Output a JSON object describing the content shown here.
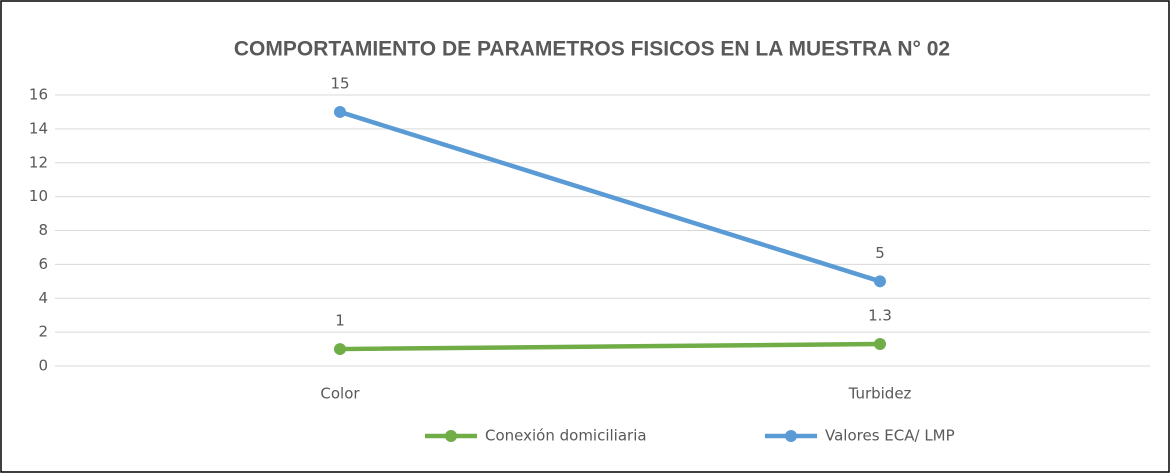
{
  "chart_data": {
    "type": "line",
    "title": "COMPORTAMIENTO DE PARAMETROS FISICOS EN LA MUESTRA N° 02",
    "categories": [
      "Color",
      "Turbidez"
    ],
    "series": [
      {
        "name": "Conexión domiciliaria",
        "color": "#70ad47",
        "values": [
          1,
          1.3
        ]
      },
      {
        "name": "Valores ECA/ LMP",
        "color": "#5b9bd5",
        "values": [
          15,
          5
        ]
      }
    ],
    "ylim": [
      0,
      16
    ],
    "yticks": [
      0,
      2,
      4,
      6,
      8,
      10,
      12,
      14,
      16
    ],
    "grid": true,
    "legend": "bottom"
  }
}
